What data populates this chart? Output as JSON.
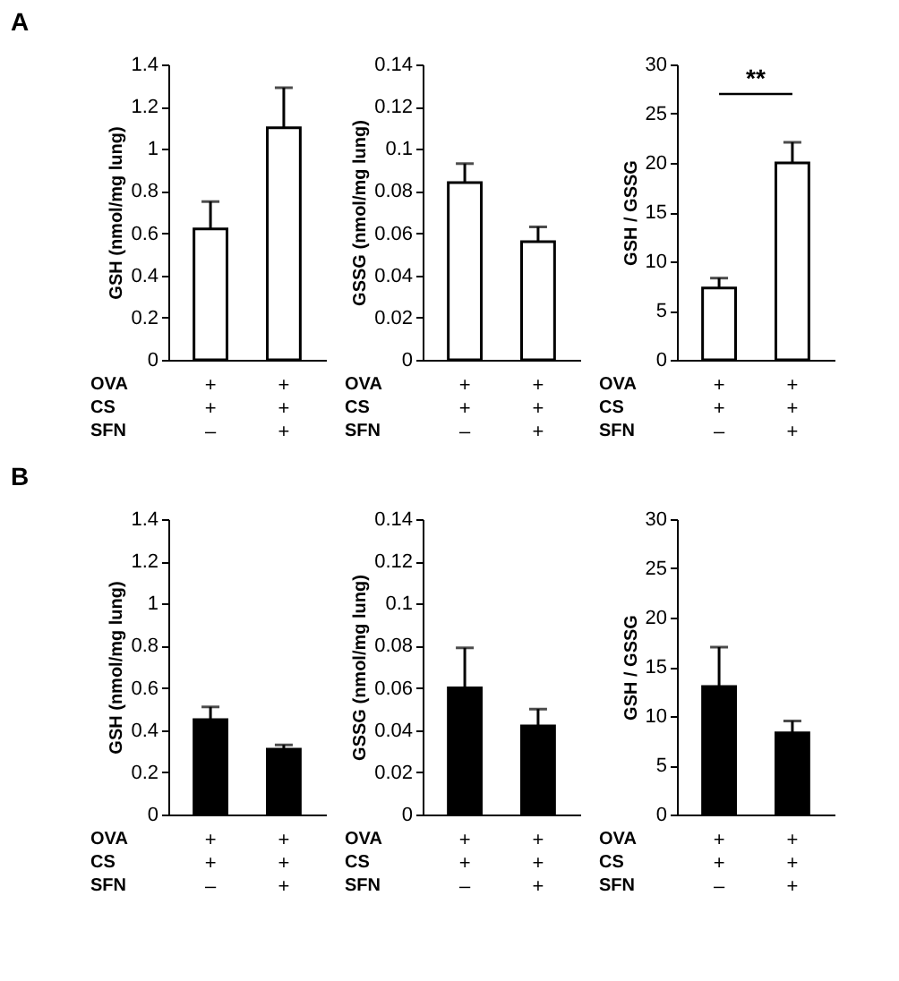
{
  "chart_data": [
    {
      "type": "bar",
      "title": "A",
      "ylabel": "GSH (nmol/mg lung)",
      "xlabel": "OVA\nCS\nSFN",
      "categories": [
        "+\n+\n–",
        "+\n+\n+"
      ],
      "values": [
        0.62,
        1.1
      ],
      "errors": [
        [
          0.62,
          0.75
        ],
        [
          1.1,
          1.29
        ]
      ],
      "color": "#ffffff",
      "ylim": [
        0,
        1.4
      ],
      "yticks": [
        0,
        0.2,
        0.4,
        0.6,
        0.8,
        1,
        1.2,
        1.4
      ],
      "grid": false
    },
    {
      "type": "bar",
      "ylabel": "GSSG (nmol/mg lung)",
      "xlabel": "OVA\nCS\nSFN",
      "categories": [
        "+\n+\n–",
        "+\n+\n+"
      ],
      "values": [
        0.084,
        0.056
      ],
      "errors": [
        [
          0.084,
          0.093
        ],
        [
          0.056,
          0.063
        ]
      ],
      "color": "#ffffff",
      "ylim": [
        0,
        0.14
      ],
      "yticks": [
        0,
        0.02,
        0.04,
        0.06,
        0.08,
        0.1,
        0.12,
        0.14
      ],
      "grid": false
    },
    {
      "type": "bar",
      "ylabel": "GSH / GSSG",
      "xlabel": "OVA\nCS\nSFN",
      "categories": [
        "+\n+\n–",
        "+\n+\n+"
      ],
      "values": [
        7.3,
        20
      ],
      "errors": [
        [
          7.3,
          8.3
        ],
        [
          20,
          22.1
        ]
      ],
      "color": "#ffffff",
      "ylim": [
        0,
        30
      ],
      "yticks": [
        0,
        5,
        10,
        15,
        20,
        25,
        30
      ],
      "grid": false,
      "annotations": [
        "**"
      ]
    },
    {
      "type": "bar",
      "title": "B",
      "ylabel": "GSH (nmol/mg lung)",
      "xlabel": "OVA\nCS\nSFN",
      "categories": [
        "+\n+\n–",
        "+\n+\n+"
      ],
      "values": [
        0.45,
        0.31
      ],
      "errors": [
        [
          0.45,
          0.51
        ],
        [
          0.31,
          0.33
        ]
      ],
      "color": "#000000",
      "ylim": [
        0,
        1.4
      ],
      "yticks": [
        0,
        0.2,
        0.4,
        0.6,
        0.8,
        1,
        1.2,
        1.4
      ],
      "grid": false
    },
    {
      "type": "bar",
      "ylabel": "GSSG (nmol/mg lung)",
      "xlabel": "OVA\nCS\nSFN",
      "categories": [
        "+\n+\n–",
        "+\n+\n+"
      ],
      "values": [
        0.06,
        0.042
      ],
      "errors": [
        [
          0.06,
          0.079
        ],
        [
          0.042,
          0.05
        ]
      ],
      "color": "#000000",
      "ylim": [
        0,
        0.14
      ],
      "yticks": [
        0,
        0.02,
        0.04,
        0.06,
        0.08,
        0.1,
        0.12,
        0.14
      ],
      "grid": false
    },
    {
      "type": "bar",
      "ylabel": "GSH / GSSG",
      "xlabel": "OVA\nCS\nSFN",
      "categories": [
        "+\n+\n–",
        "+\n+\n+"
      ],
      "values": [
        13,
        8.3
      ],
      "errors": [
        [
          13,
          17
        ],
        [
          8.3,
          9.5
        ]
      ],
      "color": "#000000",
      "ylim": [
        0,
        30
      ],
      "yticks": [
        0,
        5,
        10,
        15,
        20,
        25,
        30
      ],
      "grid": false
    }
  ]
}
